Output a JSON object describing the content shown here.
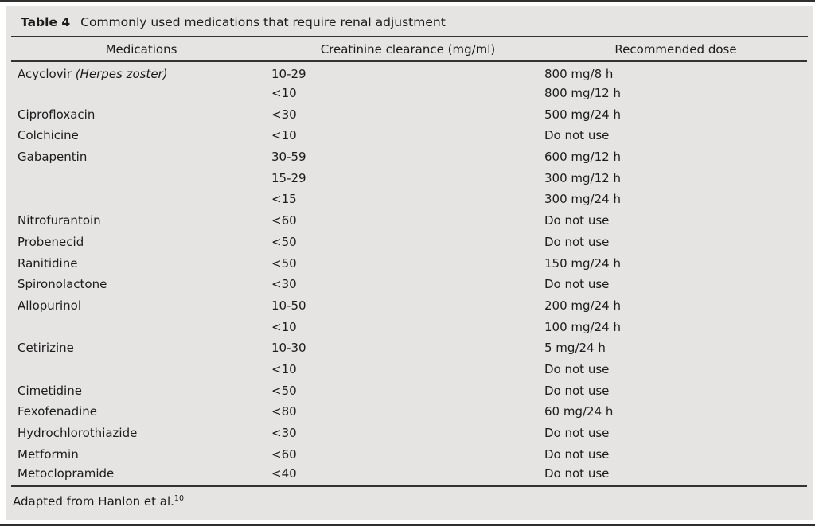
{
  "page": {
    "background": "#ffffff",
    "panel_background": "#e5e4e3",
    "rule_color": "#2f2f2f",
    "text_color": "#1c1c1c"
  },
  "table": {
    "label": "Table 4",
    "title": "Commonly used medications that require renal adjustment",
    "columns": [
      "Medications",
      "Creatinine clearance (mg/ml)",
      "Recommended dose"
    ],
    "rows": [
      {
        "medication": "Acyclovir",
        "note": "(Herpes zoster)",
        "clearance": "10-29",
        "dose": "800 mg/8 h"
      },
      {
        "medication": "",
        "note": "",
        "clearance": "<10",
        "dose": "800 mg/12 h"
      },
      {
        "medication": "Ciprofloxacin",
        "note": "",
        "clearance": "<30",
        "dose": "500 mg/24 h"
      },
      {
        "medication": "Colchicine",
        "note": "",
        "clearance": "<10",
        "dose": "Do not use"
      },
      {
        "medication": "Gabapentin",
        "note": "",
        "clearance": "30-59",
        "dose": "600 mg/12 h"
      },
      {
        "medication": "",
        "note": "",
        "clearance": "15-29",
        "dose": "300 mg/12 h"
      },
      {
        "medication": "",
        "note": "",
        "clearance": "<15",
        "dose": "300 mg/24 h"
      },
      {
        "medication": "Nitrofurantoin",
        "note": "",
        "clearance": "<60",
        "dose": "Do not use"
      },
      {
        "medication": "Probenecid",
        "note": "",
        "clearance": "<50",
        "dose": "Do not use"
      },
      {
        "medication": "Ranitidine",
        "note": "",
        "clearance": "<50",
        "dose": "150 mg/24 h"
      },
      {
        "medication": "Spironolactone",
        "note": "",
        "clearance": "<30",
        "dose": "Do not use"
      },
      {
        "medication": "Allopurinol",
        "note": "",
        "clearance": "10-50",
        "dose": "200 mg/24 h"
      },
      {
        "medication": "",
        "note": "",
        "clearance": "<10",
        "dose": "100 mg/24 h"
      },
      {
        "medication": "Cetirizine",
        "note": "",
        "clearance": "10-30",
        "dose": "5 mg/24 h"
      },
      {
        "medication": "",
        "note": "",
        "clearance": "<10",
        "dose": "Do not use"
      },
      {
        "medication": "Cimetidine",
        "note": "",
        "clearance": "<50",
        "dose": "Do not use"
      },
      {
        "medication": "Fexofenadine",
        "note": "",
        "clearance": "<80",
        "dose": "60 mg/24 h"
      },
      {
        "medication": "Hydrochlorothiazide",
        "note": "",
        "clearance": "<30",
        "dose": "Do not use"
      },
      {
        "medication": "Metformin",
        "note": "",
        "clearance": "<60",
        "dose": "Do not use"
      },
      {
        "medication": "Metoclopramide",
        "note": "",
        "clearance": "<40",
        "dose": "Do not use"
      }
    ],
    "footnote": {
      "text": "Adapted from Hanlon et al.",
      "ref": "10"
    }
  }
}
